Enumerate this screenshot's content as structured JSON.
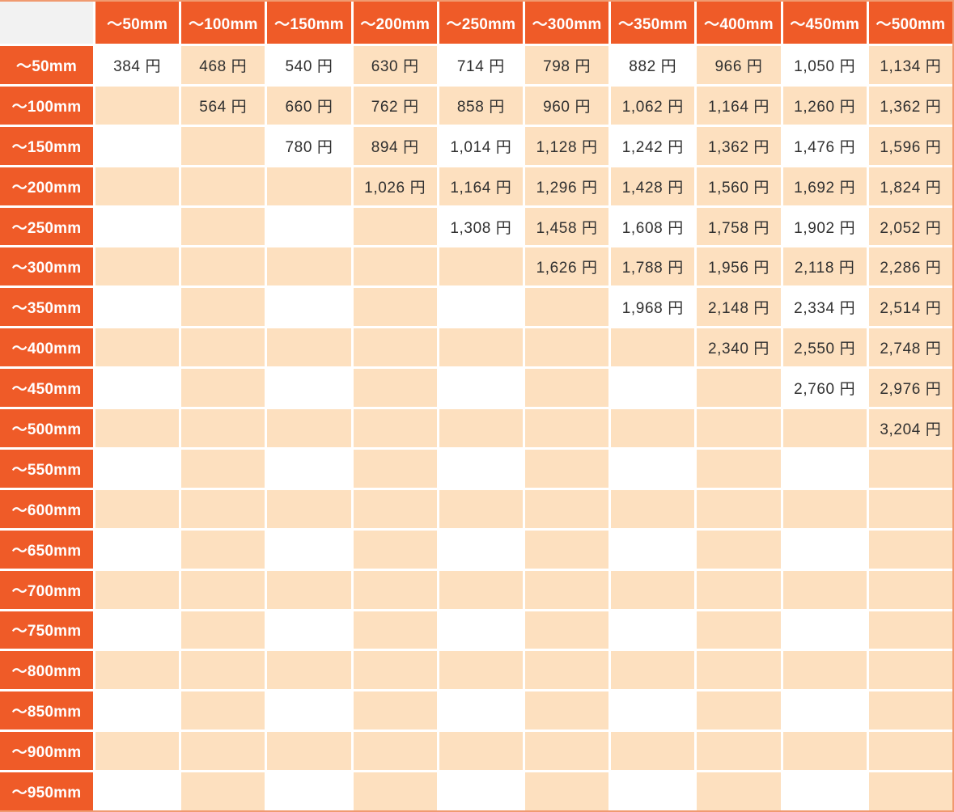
{
  "chart_data": {
    "type": "table",
    "title": "",
    "corner_label": "",
    "unit": "円",
    "columns": [
      "〜50mm",
      "〜100mm",
      "〜150mm",
      "〜200mm",
      "〜250mm",
      "〜300mm",
      "〜350mm",
      "〜400mm",
      "〜450mm",
      "〜500mm"
    ],
    "rows": [
      {
        "label": "〜50mm",
        "values": [
          384,
          468,
          540,
          630,
          714,
          798,
          882,
          966,
          1050,
          1134
        ]
      },
      {
        "label": "〜100mm",
        "values": [
          null,
          564,
          660,
          762,
          858,
          960,
          1062,
          1164,
          1260,
          1362
        ]
      },
      {
        "label": "〜150mm",
        "values": [
          null,
          null,
          780,
          894,
          1014,
          1128,
          1242,
          1362,
          1476,
          1596
        ]
      },
      {
        "label": "〜200mm",
        "values": [
          null,
          null,
          null,
          1026,
          1164,
          1296,
          1428,
          1560,
          1692,
          1824
        ]
      },
      {
        "label": "〜250mm",
        "values": [
          null,
          null,
          null,
          null,
          1308,
          1458,
          1608,
          1758,
          1902,
          2052
        ]
      },
      {
        "label": "〜300mm",
        "values": [
          null,
          null,
          null,
          null,
          null,
          1626,
          1788,
          1956,
          2118,
          2286
        ]
      },
      {
        "label": "〜350mm",
        "values": [
          null,
          null,
          null,
          null,
          null,
          null,
          1968,
          2148,
          2334,
          2514
        ]
      },
      {
        "label": "〜400mm",
        "values": [
          null,
          null,
          null,
          null,
          null,
          null,
          null,
          2340,
          2550,
          2748
        ]
      },
      {
        "label": "〜450mm",
        "values": [
          null,
          null,
          null,
          null,
          null,
          null,
          null,
          null,
          2760,
          2976
        ]
      },
      {
        "label": "〜500mm",
        "values": [
          null,
          null,
          null,
          null,
          null,
          null,
          null,
          null,
          null,
          3204
        ]
      },
      {
        "label": "〜550mm",
        "values": [
          null,
          null,
          null,
          null,
          null,
          null,
          null,
          null,
          null,
          null
        ]
      },
      {
        "label": "〜600mm",
        "values": [
          null,
          null,
          null,
          null,
          null,
          null,
          null,
          null,
          null,
          null
        ]
      },
      {
        "label": "〜650mm",
        "values": [
          null,
          null,
          null,
          null,
          null,
          null,
          null,
          null,
          null,
          null
        ]
      },
      {
        "label": "〜700mm",
        "values": [
          null,
          null,
          null,
          null,
          null,
          null,
          null,
          null,
          null,
          null
        ]
      },
      {
        "label": "〜750mm",
        "values": [
          null,
          null,
          null,
          null,
          null,
          null,
          null,
          null,
          null,
          null
        ]
      },
      {
        "label": "〜800mm",
        "values": [
          null,
          null,
          null,
          null,
          null,
          null,
          null,
          null,
          null,
          null
        ]
      },
      {
        "label": "〜850mm",
        "values": [
          null,
          null,
          null,
          null,
          null,
          null,
          null,
          null,
          null,
          null
        ]
      },
      {
        "label": "〜900mm",
        "values": [
          null,
          null,
          null,
          null,
          null,
          null,
          null,
          null,
          null,
          null
        ]
      },
      {
        "label": "〜950mm",
        "values": [
          null,
          null,
          null,
          null,
          null,
          null,
          null,
          null,
          null,
          null
        ]
      }
    ]
  },
  "colors": {
    "header_bg": "#ef5b28",
    "header_text": "#ffffff",
    "cell_bg": "#ffffff",
    "cell_alt_bg": "#fde0bf",
    "corner_bg": "#f2f2f2",
    "text": "#303030",
    "outer_border": "#f09a70"
  }
}
